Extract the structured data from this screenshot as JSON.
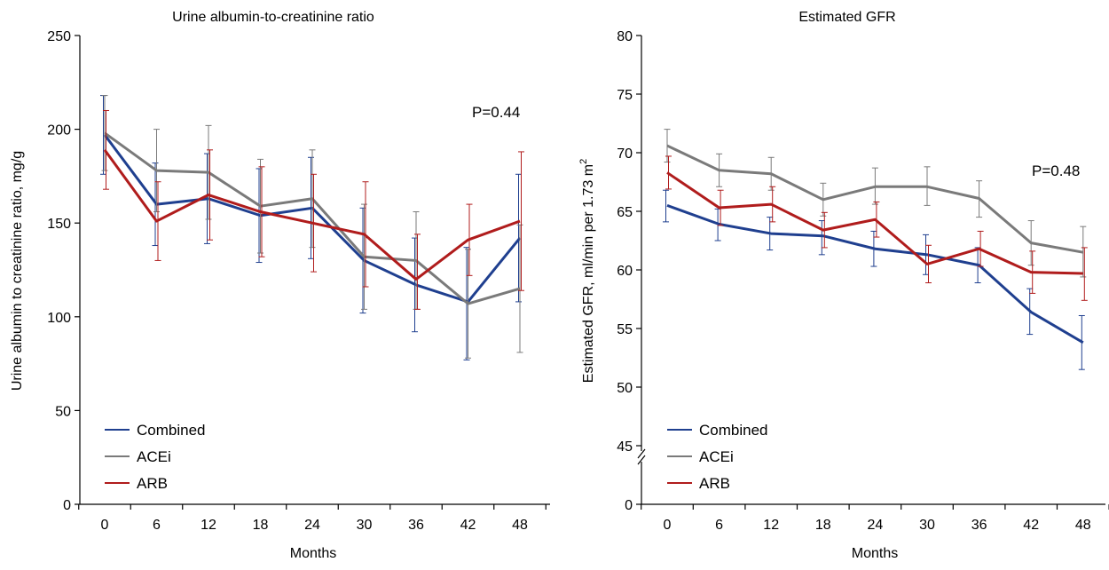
{
  "chart_data": [
    {
      "type": "line",
      "title": "Urine albumin-to-creatinine ratio",
      "xlabel": "Months",
      "ylabel": "Urine albumin to creatinine ratio, mg/g",
      "x": [
        0,
        6,
        12,
        18,
        24,
        30,
        36,
        42,
        48
      ],
      "xticks": [
        "0",
        "6",
        "12",
        "18",
        "24",
        "30",
        "36",
        "42",
        "48"
      ],
      "ylim": [
        0,
        250
      ],
      "yticks": [
        0,
        50,
        100,
        150,
        200,
        250
      ],
      "annotation": "P=0.44",
      "legend": "bottom-left",
      "grid": false,
      "series": [
        {
          "name": "Combined",
          "color": "#1f3f8f",
          "values": [
            197,
            160,
            163,
            154,
            158,
            130,
            117,
            108,
            142
          ],
          "err_upper": [
            218,
            182,
            187,
            179,
            185,
            158,
            142,
            137,
            176
          ],
          "err_lower": [
            176,
            138,
            139,
            129,
            131,
            102,
            92,
            77,
            108
          ]
        },
        {
          "name": "ACEi",
          "color": "#7a7a7a",
          "values": [
            198,
            178,
            177,
            159,
            163,
            132,
            130,
            107,
            115
          ],
          "err_upper": [
            218,
            200,
            202,
            184,
            189,
            160,
            156,
            136,
            149
          ],
          "err_lower": [
            178,
            156,
            152,
            134,
            137,
            104,
            104,
            78,
            81
          ]
        },
        {
          "name": "ARB",
          "color": "#b01c1c",
          "values": [
            189,
            151,
            165,
            156,
            150,
            144,
            120,
            141,
            151
          ],
          "err_upper": [
            210,
            172,
            189,
            180,
            176,
            172,
            144,
            160,
            188
          ],
          "err_lower": [
            168,
            130,
            141,
            132,
            124,
            116,
            104,
            122,
            114
          ]
        }
      ]
    },
    {
      "type": "line",
      "title": "Estimated GFR",
      "xlabel": "Months",
      "ylabel": "Estimated GFR, ml/min per 1.73 m",
      "ylabel_superscript": "2",
      "x": [
        0,
        6,
        12,
        18,
        24,
        30,
        36,
        42,
        48
      ],
      "xticks": [
        "0",
        "6",
        "12",
        "18",
        "24",
        "30",
        "36",
        "42",
        "48"
      ],
      "ylim": [
        45,
        80
      ],
      "yticks": [
        45,
        50,
        55,
        60,
        65,
        70,
        75,
        80
      ],
      "ybreak_label": "0",
      "annotation": "P=0.48",
      "legend": "bottom-left",
      "grid": false,
      "series": [
        {
          "name": "Combined",
          "color": "#1f3f8f",
          "values": [
            65.5,
            63.9,
            63.1,
            62.9,
            61.8,
            61.3,
            60.4,
            56.4,
            53.8
          ],
          "err_upper": [
            66.8,
            65.2,
            64.5,
            64.2,
            63.3,
            63.0,
            61.9,
            58.4,
            56.1
          ],
          "err_lower": [
            64.1,
            62.5,
            61.7,
            61.3,
            60.3,
            59.6,
            58.9,
            54.5,
            51.5
          ]
        },
        {
          "name": "ACEi",
          "color": "#7a7a7a",
          "values": [
            70.6,
            68.5,
            68.2,
            66.0,
            67.1,
            67.1,
            66.1,
            62.3,
            61.5
          ],
          "err_upper": [
            72.0,
            69.9,
            69.6,
            67.4,
            68.7,
            68.8,
            67.6,
            64.2,
            63.7
          ],
          "err_lower": [
            69.2,
            67.1,
            66.8,
            64.6,
            65.6,
            65.5,
            64.5,
            60.4,
            59.4
          ]
        },
        {
          "name": "ARB",
          "color": "#b01c1c",
          "values": [
            68.3,
            65.3,
            65.6,
            63.4,
            64.3,
            60.5,
            61.8,
            59.8,
            59.7
          ],
          "err_upper": [
            69.7,
            66.8,
            67.1,
            64.9,
            65.8,
            62.1,
            63.3,
            61.6,
            61.9
          ],
          "err_lower": [
            66.9,
            63.8,
            64.1,
            61.9,
            62.8,
            58.9,
            60.3,
            58.0,
            57.4
          ]
        }
      ]
    }
  ]
}
